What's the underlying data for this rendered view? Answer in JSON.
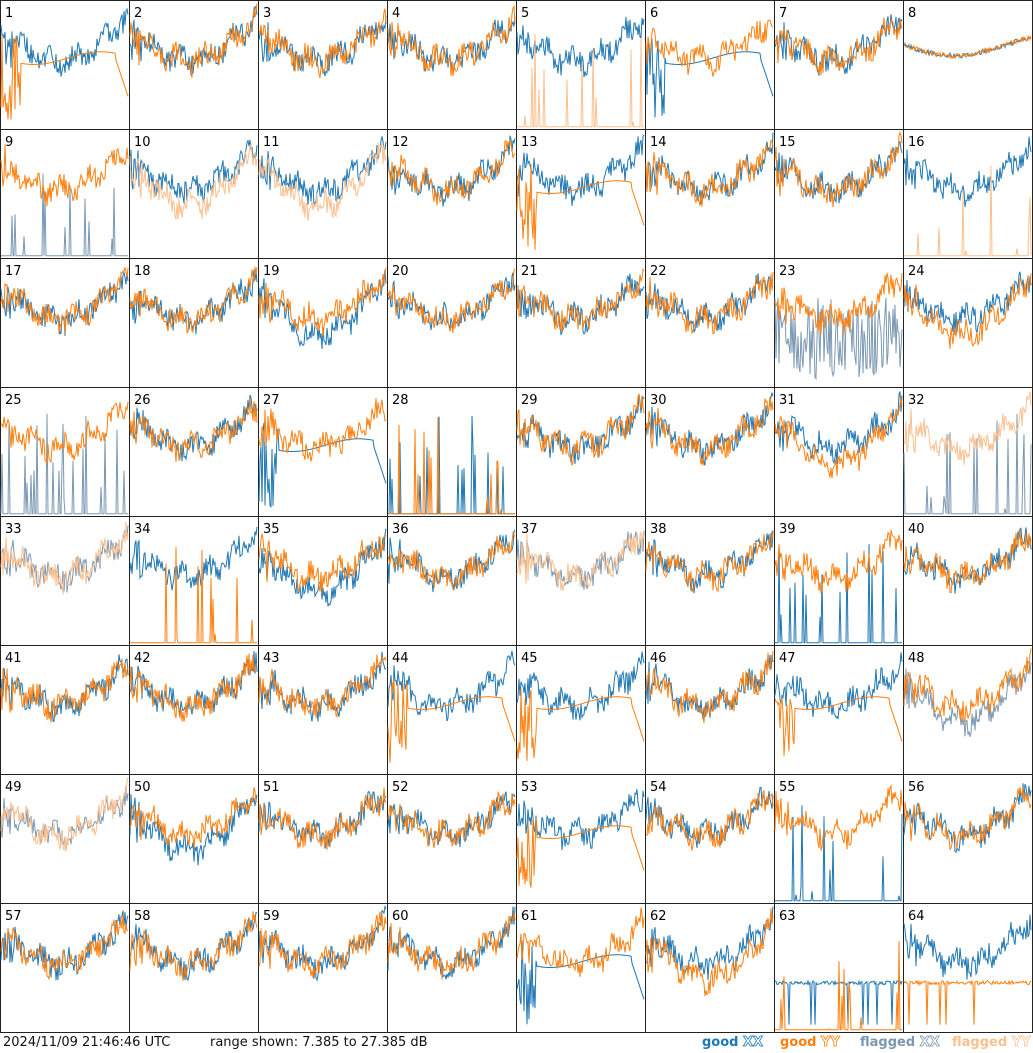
{
  "timestamp": "2024/11/09 21:46:46 UTC",
  "range_text": "range shown: 7.385 to 27.385 dB",
  "legend": [
    {
      "key": "good_xx",
      "prefix": "good",
      "pol": "XX",
      "color": "#1f77b4"
    },
    {
      "key": "good_yy",
      "prefix": "good",
      "pol": "YY",
      "color": "#ff7f0e"
    },
    {
      "key": "flagged_xx",
      "prefix": "flagged",
      "pol": "XX",
      "color": "#7b98b3"
    },
    {
      "key": "flagged_yy",
      "prefix": "flagged",
      "pol": "YY",
      "color": "#fcc08f"
    }
  ],
  "chart_data": {
    "type": "line",
    "ylim": [
      7.385,
      27.385
    ],
    "y_unit": "dB",
    "grid": "8x8 small multiples",
    "panels": [
      {
        "id": 1,
        "xx": "good",
        "yy": "good",
        "xx_profile": "normal",
        "yy_profile": "drop"
      },
      {
        "id": 2,
        "xx": "good",
        "yy": "good",
        "xx_profile": "normal",
        "yy_profile": "normal"
      },
      {
        "id": 3,
        "xx": "good",
        "yy": "good",
        "xx_profile": "normal",
        "yy_profile": "normal"
      },
      {
        "id": 4,
        "xx": "good",
        "yy": "good",
        "xx_profile": "normal",
        "yy_profile": "normal"
      },
      {
        "id": 5,
        "xx": "good",
        "yy": "flagged",
        "xx_profile": "normal",
        "yy_profile": "spikes"
      },
      {
        "id": 6,
        "xx": "good",
        "yy": "good",
        "xx_profile": "drop",
        "yy_profile": "normal"
      },
      {
        "id": 7,
        "xx": "good",
        "yy": "good",
        "xx_profile": "normal",
        "yy_profile": "normal"
      },
      {
        "id": 8,
        "xx": "good",
        "yy": "good",
        "xx_profile": "smooth",
        "yy_profile": "smooth"
      },
      {
        "id": 9,
        "xx": "flagged",
        "yy": "good",
        "xx_profile": "spikes",
        "yy_profile": "normal"
      },
      {
        "id": 10,
        "xx": "good",
        "yy": "flagged",
        "xx_profile": "normal",
        "yy_profile": "low"
      },
      {
        "id": 11,
        "xx": "good",
        "yy": "flagged",
        "xx_profile": "normal",
        "yy_profile": "low"
      },
      {
        "id": 12,
        "xx": "good",
        "yy": "good",
        "xx_profile": "normal",
        "yy_profile": "normal"
      },
      {
        "id": 13,
        "xx": "good",
        "yy": "good",
        "xx_profile": "normal",
        "yy_profile": "drop"
      },
      {
        "id": 14,
        "xx": "good",
        "yy": "good",
        "xx_profile": "normal",
        "yy_profile": "normal"
      },
      {
        "id": 15,
        "xx": "good",
        "yy": "good",
        "xx_profile": "normal",
        "yy_profile": "normal"
      },
      {
        "id": 16,
        "xx": "good",
        "yy": "flagged",
        "xx_profile": "normal",
        "yy_profile": "spikes"
      },
      {
        "id": 17,
        "xx": "good",
        "yy": "good",
        "xx_profile": "normal",
        "yy_profile": "normal"
      },
      {
        "id": 18,
        "xx": "good",
        "yy": "good",
        "xx_profile": "normal",
        "yy_profile": "normal"
      },
      {
        "id": 19,
        "xx": "good",
        "yy": "good",
        "xx_profile": "low",
        "yy_profile": "normal"
      },
      {
        "id": 20,
        "xx": "good",
        "yy": "good",
        "xx_profile": "normal",
        "yy_profile": "normal"
      },
      {
        "id": 21,
        "xx": "good",
        "yy": "good",
        "xx_profile": "normal",
        "yy_profile": "normal"
      },
      {
        "id": 22,
        "xx": "good",
        "yy": "good",
        "xx_profile": "normal",
        "yy_profile": "normal"
      },
      {
        "id": 23,
        "xx": "flagged",
        "yy": "good",
        "xx_profile": "noisy",
        "yy_profile": "normal"
      },
      {
        "id": 24,
        "xx": "good",
        "yy": "good",
        "xx_profile": "normal",
        "yy_profile": "low"
      },
      {
        "id": 25,
        "xx": "flagged",
        "yy": "good",
        "xx_profile": "spikes",
        "yy_profile": "normal"
      },
      {
        "id": 26,
        "xx": "good",
        "yy": "good",
        "xx_profile": "normal",
        "yy_profile": "normal"
      },
      {
        "id": 27,
        "xx": "good",
        "yy": "good",
        "xx_profile": "drop",
        "yy_profile": "normal"
      },
      {
        "id": 28,
        "xx": "good",
        "yy": "good",
        "xx_profile": "spikes",
        "yy_profile": "spikes"
      },
      {
        "id": 29,
        "xx": "good",
        "yy": "good",
        "xx_profile": "normal",
        "yy_profile": "normal"
      },
      {
        "id": 30,
        "xx": "good",
        "yy": "good",
        "xx_profile": "normal",
        "yy_profile": "normal"
      },
      {
        "id": 31,
        "xx": "good",
        "yy": "good",
        "xx_profile": "normal",
        "yy_profile": "low"
      },
      {
        "id": 32,
        "xx": "flagged",
        "yy": "flagged",
        "xx_profile": "spikes",
        "yy_profile": "normal"
      },
      {
        "id": 33,
        "xx": "flagged",
        "yy": "flagged",
        "xx_profile": "normal",
        "yy_profile": "normal"
      },
      {
        "id": 34,
        "xx": "good",
        "yy": "good",
        "xx_profile": "normal",
        "yy_profile": "spikes"
      },
      {
        "id": 35,
        "xx": "good",
        "yy": "good",
        "xx_profile": "low",
        "yy_profile": "normal"
      },
      {
        "id": 36,
        "xx": "good",
        "yy": "good",
        "xx_profile": "normal",
        "yy_profile": "normal"
      },
      {
        "id": 37,
        "xx": "flagged",
        "yy": "flagged",
        "xx_profile": "normal",
        "yy_profile": "normal"
      },
      {
        "id": 38,
        "xx": "good",
        "yy": "good",
        "xx_profile": "normal",
        "yy_profile": "normal"
      },
      {
        "id": 39,
        "xx": "good",
        "yy": "good",
        "xx_profile": "spikes",
        "yy_profile": "normal"
      },
      {
        "id": 40,
        "xx": "good",
        "yy": "good",
        "xx_profile": "normal",
        "yy_profile": "normal"
      },
      {
        "id": 41,
        "xx": "good",
        "yy": "good",
        "xx_profile": "normal",
        "yy_profile": "normal"
      },
      {
        "id": 42,
        "xx": "good",
        "yy": "good",
        "xx_profile": "normal",
        "yy_profile": "normal"
      },
      {
        "id": 43,
        "xx": "good",
        "yy": "good",
        "xx_profile": "normal",
        "yy_profile": "normal"
      },
      {
        "id": 44,
        "xx": "good",
        "yy": "good",
        "xx_profile": "normal",
        "yy_profile": "drop"
      },
      {
        "id": 45,
        "xx": "good",
        "yy": "good",
        "xx_profile": "normal",
        "yy_profile": "drop"
      },
      {
        "id": 46,
        "xx": "good",
        "yy": "good",
        "xx_profile": "normal",
        "yy_profile": "normal"
      },
      {
        "id": 47,
        "xx": "good",
        "yy": "good",
        "xx_profile": "normal",
        "yy_profile": "drop"
      },
      {
        "id": 48,
        "xx": "flagged",
        "yy": "good",
        "xx_profile": "low",
        "yy_profile": "normal"
      },
      {
        "id": 49,
        "xx": "flagged",
        "yy": "flagged",
        "xx_profile": "normal",
        "yy_profile": "normal"
      },
      {
        "id": 50,
        "xx": "good",
        "yy": "good",
        "xx_profile": "low",
        "yy_profile": "normal"
      },
      {
        "id": 51,
        "xx": "good",
        "yy": "good",
        "xx_profile": "normal",
        "yy_profile": "normal"
      },
      {
        "id": 52,
        "xx": "good",
        "yy": "good",
        "xx_profile": "normal",
        "yy_profile": "normal"
      },
      {
        "id": 53,
        "xx": "good",
        "yy": "good",
        "xx_profile": "normal",
        "yy_profile": "drop"
      },
      {
        "id": 54,
        "xx": "good",
        "yy": "good",
        "xx_profile": "normal",
        "yy_profile": "normal"
      },
      {
        "id": 55,
        "xx": "good",
        "yy": "good",
        "xx_profile": "spikes",
        "yy_profile": "normal"
      },
      {
        "id": 56,
        "xx": "good",
        "yy": "good",
        "xx_profile": "normal",
        "yy_profile": "normal"
      },
      {
        "id": 57,
        "xx": "good",
        "yy": "good",
        "xx_profile": "normal",
        "yy_profile": "normal"
      },
      {
        "id": 58,
        "xx": "good",
        "yy": "good",
        "xx_profile": "normal",
        "yy_profile": "normal"
      },
      {
        "id": 59,
        "xx": "good",
        "yy": "good",
        "xx_profile": "normal",
        "yy_profile": "normal"
      },
      {
        "id": 60,
        "xx": "good",
        "yy": "good",
        "xx_profile": "normal",
        "yy_profile": "normal"
      },
      {
        "id": 61,
        "xx": "good",
        "yy": "good",
        "xx_profile": "drop",
        "yy_profile": "normal"
      },
      {
        "id": 62,
        "xx": "good",
        "yy": "good",
        "xx_profile": "normal",
        "yy_profile": "low"
      },
      {
        "id": 63,
        "xx": "good",
        "yy": "good",
        "xx_profile": "flat",
        "yy_profile": "spikes"
      },
      {
        "id": 64,
        "xx": "good",
        "yy": "good",
        "xx_profile": "normal",
        "yy_profile": "flat"
      }
    ]
  }
}
